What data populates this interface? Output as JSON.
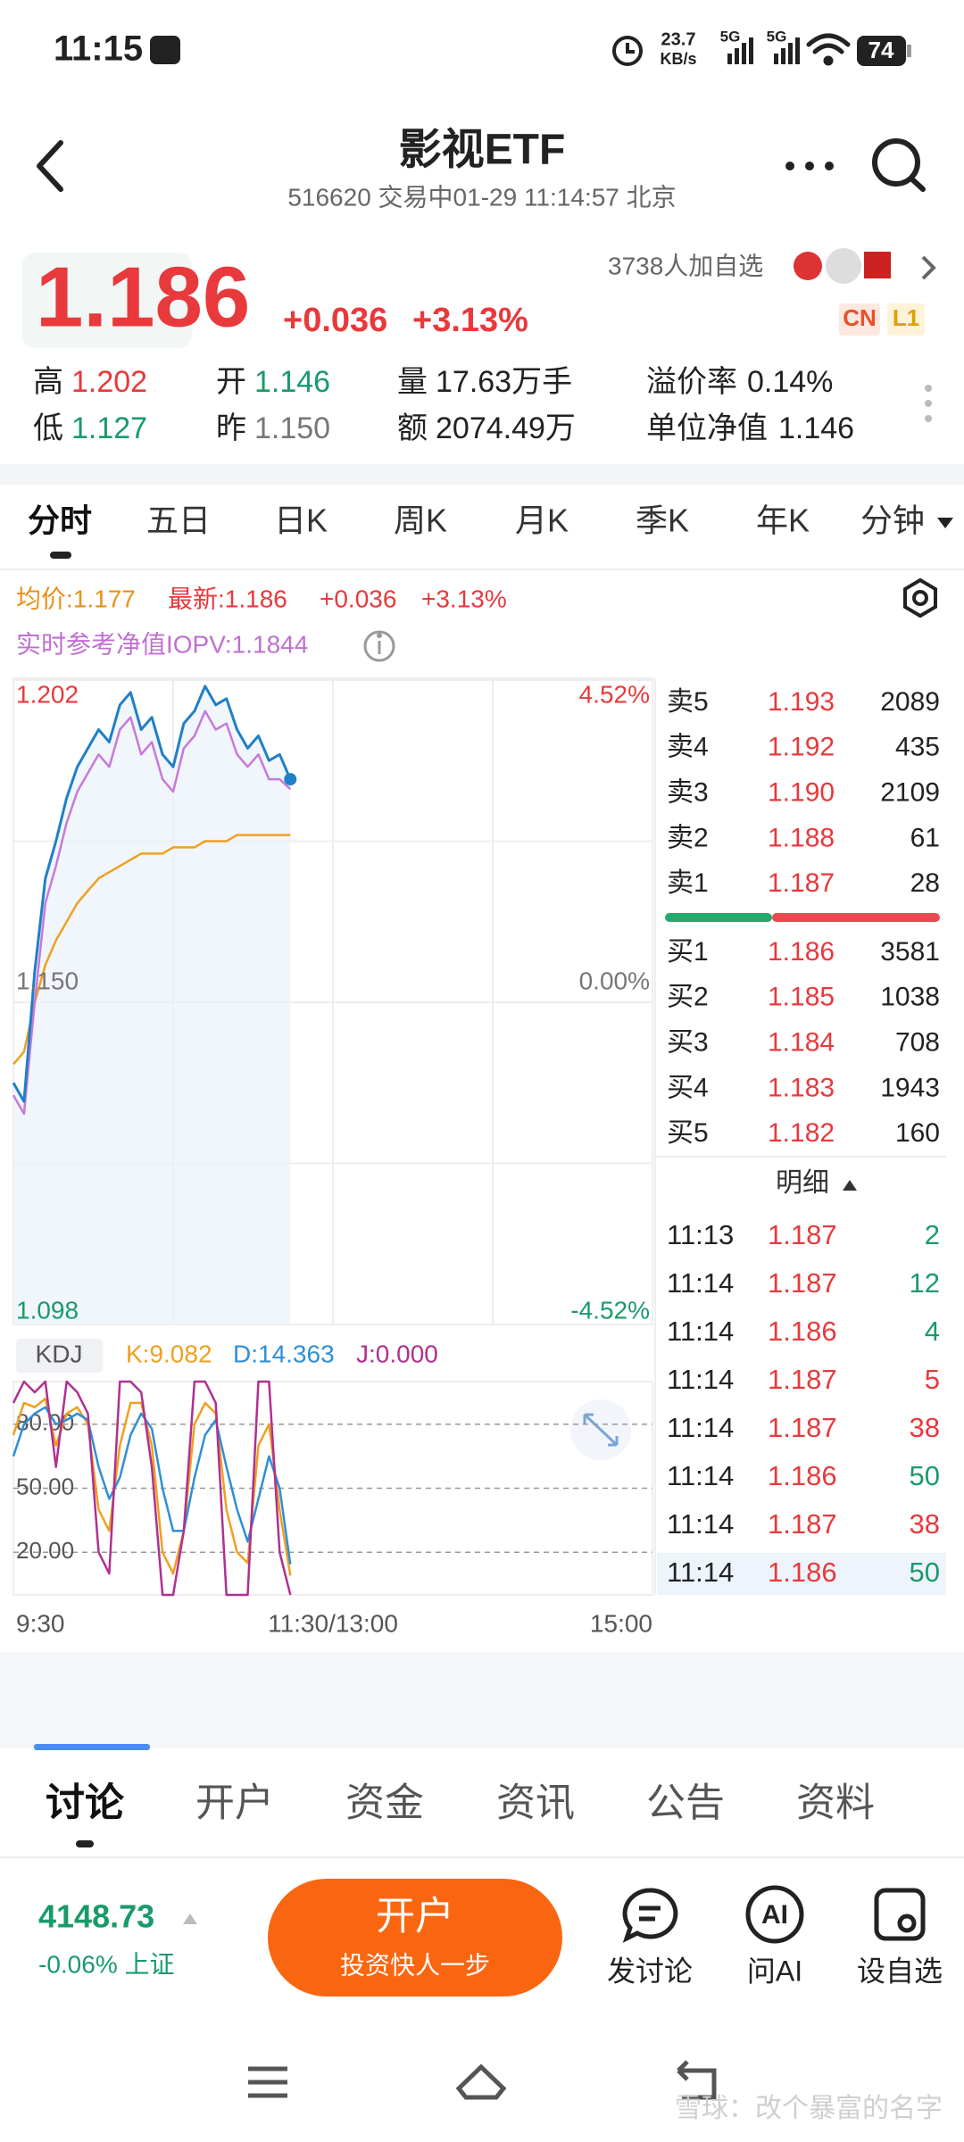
{
  "status_bar": {
    "time": "11:15",
    "net_speed": "23.7",
    "net_unit": "KB/s",
    "signal_1": "5G",
    "signal_2": "5G",
    "battery": "74"
  },
  "header": {
    "title": "影视ETF",
    "subtitle": "516620 交易中01-29 11:14:57 北京"
  },
  "quote": {
    "price": "1.186",
    "change": "+0.036",
    "change_pct": "+3.13%",
    "followers": "3738人加自选",
    "badges": [
      "CN",
      "L1"
    ]
  },
  "stats": [
    {
      "label": "高",
      "value": "1.202",
      "color": "#e8393c"
    },
    {
      "label": "开",
      "value": "1.146",
      "color": "#1a9a6a"
    },
    {
      "label": "量",
      "value": "17.63万手",
      "color": "#222222"
    },
    {
      "label": "溢价率",
      "value": "0.14%",
      "color": "#222222"
    },
    {
      "label": "低",
      "value": "1.127",
      "color": "#1a9a6a"
    },
    {
      "label": "昨",
      "value": "1.150",
      "color": "#777777"
    },
    {
      "label": "额",
      "value": "2074.49万",
      "color": "#222222"
    },
    {
      "label": "单位净值",
      "value": "1.146",
      "color": "#222222"
    }
  ],
  "period_tabs": [
    "分时",
    "五日",
    "日K",
    "周K",
    "月K",
    "季K",
    "年K",
    "分钟"
  ],
  "chart_data": [
    {
      "type": "line",
      "x": [
        0,
        4,
        8,
        12,
        16,
        20,
        24,
        28,
        32,
        36,
        40,
        44,
        48,
        52,
        56,
        60,
        64,
        68,
        72,
        76,
        80,
        84,
        88,
        92,
        96,
        100,
        104
      ],
      "xlim": [
        0,
        240
      ],
      "xticks": [
        {
          "value": 0,
          "label": "9:30"
        },
        {
          "value": 120,
          "label": "11:30/13:00"
        },
        {
          "value": 240,
          "label": "15:00"
        }
      ],
      "ylim": [
        1.098,
        1.202
      ],
      "yticks": [
        1.202,
        {
          "value": 1.15,
          "label": "1.150"
        },
        1.098
      ],
      "y2lim": [
        -4.52,
        4.52
      ],
      "y2ticks": [
        {
          "value": 4.52,
          "label": "4.52%"
        },
        {
          "value": 0,
          "label": "0.00%"
        },
        {
          "value": -4.52,
          "label": "-4.52%"
        }
      ],
      "grid": true,
      "series": [
        {
          "name": "最新:1.186",
          "color": "#1f7fc8",
          "values": [
            1.137,
            1.134,
            1.155,
            1.17,
            1.176,
            1.183,
            1.188,
            1.191,
            1.194,
            1.192,
            1.198,
            1.2,
            1.194,
            1.196,
            1.19,
            1.188,
            1.195,
            1.197,
            1.201,
            1.198,
            1.199,
            1.194,
            1.191,
            1.193,
            1.189,
            1.19,
            1.186
          ]
        },
        {
          "name": "实时参考净值IOPV:1.1844",
          "color": "#c77ad8",
          "values": [
            1.135,
            1.132,
            1.15,
            1.166,
            1.172,
            1.179,
            1.184,
            1.187,
            1.19,
            1.188,
            1.194,
            1.196,
            1.19,
            1.192,
            1.186,
            1.184,
            1.191,
            1.193,
            1.197,
            1.194,
            1.195,
            1.19,
            1.188,
            1.19,
            1.186,
            1.186,
            1.1844
          ]
        },
        {
          "name": "均价:1.177",
          "color": "#f0a020",
          "values": [
            1.14,
            1.142,
            1.15,
            1.156,
            1.16,
            1.163,
            1.166,
            1.168,
            1.17,
            1.171,
            1.172,
            1.173,
            1.174,
            1.174,
            1.174,
            1.175,
            1.175,
            1.175,
            1.176,
            1.176,
            1.176,
            1.177,
            1.177,
            1.177,
            1.177,
            1.177,
            1.177
          ]
        }
      ]
    },
    {
      "type": "line",
      "title": "KDJ",
      "x": [
        0,
        4,
        8,
        12,
        16,
        20,
        24,
        28,
        32,
        36,
        40,
        44,
        48,
        52,
        56,
        60,
        64,
        68,
        72,
        76,
        80,
        84,
        88,
        92,
        96,
        100,
        104
      ],
      "xlim": [
        0,
        240
      ],
      "ylim": [
        0,
        100
      ],
      "yticks": [
        {
          "value": 80,
          "label": "80.00"
        },
        {
          "value": 50,
          "label": "50.00"
        },
        {
          "value": 20,
          "label": "20.00"
        }
      ],
      "series": [
        {
          "name": "K:9.082",
          "color": "#f0a020",
          "values": [
            75,
            90,
            88,
            92,
            70,
            85,
            88,
            80,
            40,
            30,
            70,
            90,
            90,
            70,
            20,
            10,
            30,
            80,
            90,
            85,
            40,
            20,
            15,
            70,
            80,
            40,
            9.082
          ]
        },
        {
          "name": "D:14.363",
          "color": "#2f8fd8",
          "values": [
            65,
            80,
            85,
            88,
            80,
            82,
            85,
            82,
            60,
            45,
            55,
            75,
            85,
            78,
            50,
            30,
            30,
            55,
            75,
            82,
            60,
            40,
            25,
            45,
            65,
            50,
            14.363
          ]
        },
        {
          "name": "J:0.000",
          "color": "#b0308f",
          "values": [
            90,
            100,
            95,
            100,
            60,
            100,
            95,
            85,
            20,
            10,
            100,
            100,
            95,
            60,
            0,
            0,
            30,
            100,
            100,
            90,
            0,
            0,
            0,
            100,
            100,
            20,
            0
          ]
        }
      ]
    }
  ],
  "order_book": {
    "asks": [
      {
        "label": "卖5",
        "price": "1.193",
        "volume": "2089"
      },
      {
        "label": "卖4",
        "price": "1.192",
        "volume": "435"
      },
      {
        "label": "卖3",
        "price": "1.190",
        "volume": "2109"
      },
      {
        "label": "卖2",
        "price": "1.188",
        "volume": "61"
      },
      {
        "label": "卖1",
        "price": "1.187",
        "volume": "28"
      }
    ],
    "bids": [
      {
        "label": "买1",
        "price": "1.186",
        "volume": "3581"
      },
      {
        "label": "买2",
        "price": "1.185",
        "volume": "1038"
      },
      {
        "label": "买3",
        "price": "1.184",
        "volume": "708"
      },
      {
        "label": "买4",
        "price": "1.183",
        "volume": "1943"
      },
      {
        "label": "买5",
        "price": "1.182",
        "volume": "160"
      }
    ]
  },
  "details": {
    "title": "明细",
    "trades": [
      {
        "time": "11:13",
        "price": "1.187",
        "volume": "2",
        "color": "#1a9a6a"
      },
      {
        "time": "11:14",
        "price": "1.187",
        "volume": "12",
        "color": "#1a9a6a"
      },
      {
        "time": "11:14",
        "price": "1.186",
        "volume": "4",
        "color": "#1a9a6a"
      },
      {
        "time": "11:14",
        "price": "1.187",
        "volume": "5",
        "color": "#e8393c"
      },
      {
        "time": "11:14",
        "price": "1.187",
        "volume": "38",
        "color": "#e8393c"
      },
      {
        "time": "11:14",
        "price": "1.186",
        "volume": "50",
        "color": "#1a9a6a"
      },
      {
        "time": "11:14",
        "price": "1.187",
        "volume": "38",
        "color": "#e8393c"
      },
      {
        "time": "11:14",
        "price": "1.186",
        "volume": "50",
        "color": "#1a9a6a"
      }
    ]
  },
  "bottom_tabs": [
    "讨论",
    "开户",
    "资金",
    "资讯",
    "公告",
    "资料"
  ],
  "footer": {
    "index_value": "4148.73",
    "index_change": "-0.06% 上证",
    "button_title": "开户",
    "button_subtitle": "投资快人一步",
    "ai_icon": "AI",
    "actions": [
      "发讨论",
      "问AI",
      "设自选"
    ]
  },
  "watermark": "雪球：改个暴富的名字"
}
